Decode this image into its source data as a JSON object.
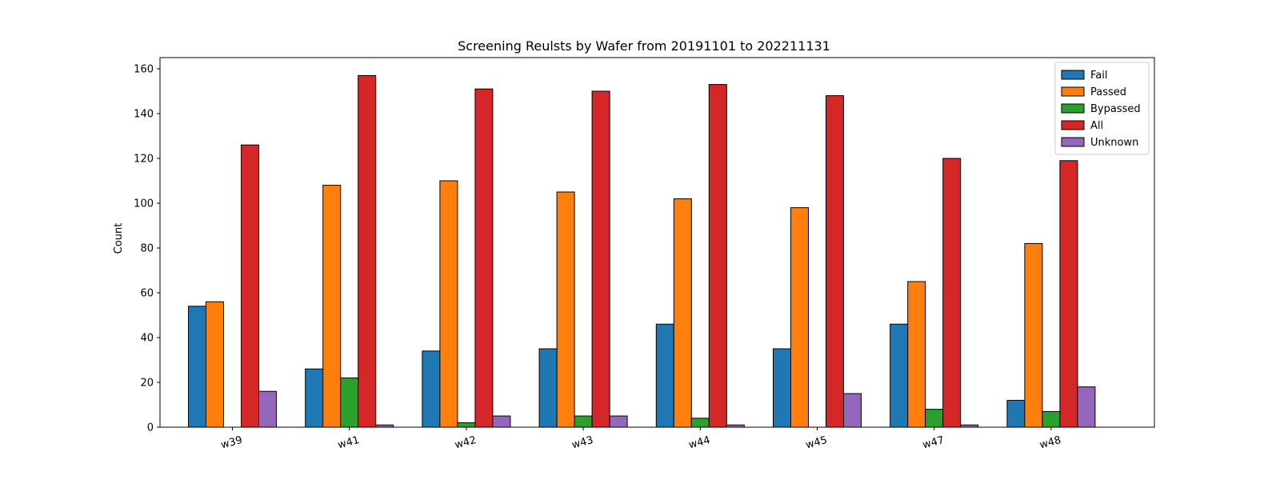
{
  "chart_data": {
    "type": "bar",
    "title": "Screening Reulsts by Wafer from 20191101 to 202211131",
    "xlabel": "",
    "ylabel": "Count",
    "categories": [
      "w39",
      "w41",
      "w42",
      "w43",
      "w44",
      "w45",
      "w47",
      "w48"
    ],
    "series": [
      {
        "name": "Fail",
        "color": "#1f77b4",
        "values": [
          54,
          26,
          34,
          35,
          46,
          35,
          46,
          12
        ]
      },
      {
        "name": "Passed",
        "color": "#ff7f0e",
        "values": [
          56,
          108,
          110,
          105,
          102,
          98,
          65,
          82
        ]
      },
      {
        "name": "Bypassed",
        "color": "#2ca02c",
        "values": [
          0,
          22,
          2,
          5,
          4,
          0,
          8,
          7
        ]
      },
      {
        "name": "All",
        "color": "#d62728",
        "values": [
          126,
          157,
          151,
          150,
          153,
          148,
          120,
          119
        ]
      },
      {
        "name": "Unknown",
        "color": "#9467bd",
        "values": [
          16,
          1,
          5,
          5,
          1,
          15,
          1,
          18
        ]
      }
    ],
    "ylim": [
      0,
      165
    ],
    "yticks": [
      0,
      20,
      40,
      60,
      80,
      100,
      120,
      140,
      160
    ],
    "grid": false,
    "legend_position": "top-right"
  }
}
